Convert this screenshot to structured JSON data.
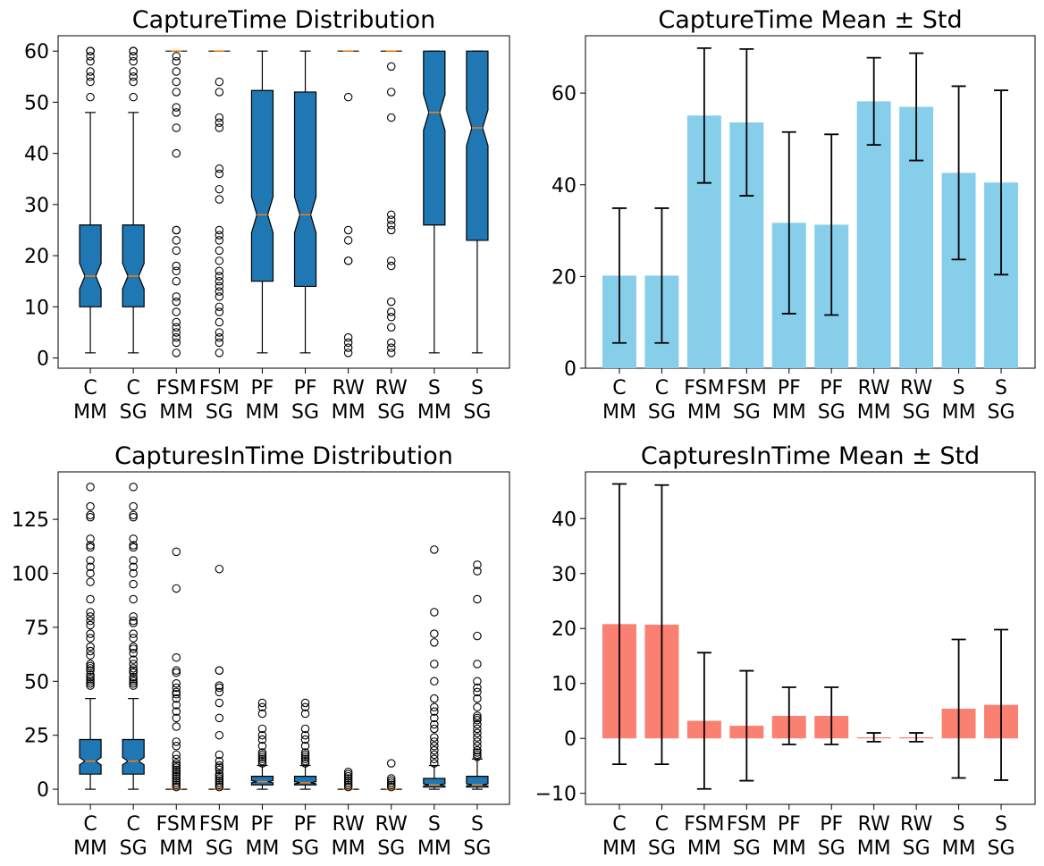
{
  "chart_data": [
    {
      "type": "box",
      "title": "CaptureTime Distribution",
      "categories": [
        "C\nMM",
        "C\nSG",
        "FSM\nMM",
        "FSM\nSG",
        "PF\nMM",
        "PF\nSG",
        "RW\nMM",
        "RW\nSG",
        "S\nMM",
        "S\nSG"
      ],
      "ylim": [
        -2,
        63
      ],
      "yticks": [
        0,
        10,
        20,
        30,
        40,
        50,
        60
      ],
      "box_color": "#1f77b4",
      "median_color": "#ff7f0e",
      "notched": true,
      "boxes": [
        {
          "q1": 10,
          "median": 16,
          "q3": 26,
          "whislo": 1,
          "whishi": 48,
          "notch": [
            13.5,
            18.5
          ],
          "fliers": [
            51,
            54,
            55,
            56,
            58,
            59,
            60,
            60,
            60
          ]
        },
        {
          "q1": 10,
          "median": 16,
          "q3": 26,
          "whislo": 1,
          "whishi": 48,
          "notch": [
            13.5,
            18.5
          ],
          "fliers": [
            51,
            54,
            55,
            56,
            58,
            59,
            60,
            60,
            60
          ]
        },
        {
          "q1": 60,
          "median": 60,
          "q3": 60,
          "whislo": 60,
          "whishi": 60,
          "notch": [
            60,
            60
          ],
          "fliers": [
            1,
            3,
            4,
            5,
            6,
            7,
            9,
            11,
            12,
            15,
            17,
            18,
            21,
            23,
            25,
            25,
            40,
            45,
            48,
            49,
            52,
            54,
            56,
            58,
            59
          ]
        },
        {
          "q1": 60,
          "median": 60,
          "q3": 60,
          "whislo": 60,
          "whishi": 60,
          "notch": [
            60,
            60
          ],
          "fliers": [
            1,
            3,
            4,
            5,
            7,
            9,
            10,
            12,
            13,
            14,
            15,
            16,
            17,
            19,
            21,
            23,
            24,
            25,
            31,
            33,
            36,
            37,
            45,
            46,
            47,
            52,
            54
          ]
        },
        {
          "q1": 15,
          "median": 28,
          "q3": 52.3,
          "whislo": 1,
          "whishi": 60,
          "notch": [
            24.5,
            31.5
          ],
          "fliers": []
        },
        {
          "q1": 14,
          "median": 28,
          "q3": 52,
          "whislo": 1,
          "whishi": 60,
          "notch": [
            24.5,
            31.5
          ],
          "fliers": []
        },
        {
          "q1": 60,
          "median": 60,
          "q3": 60,
          "whislo": 60,
          "whishi": 60,
          "notch": [
            60,
            60
          ],
          "fliers": [
            1,
            2,
            3,
            4,
            19,
            19,
            23,
            25,
            51
          ]
        },
        {
          "q1": 60,
          "median": 60,
          "q3": 60,
          "whislo": 60,
          "whishi": 60,
          "notch": [
            60,
            60
          ],
          "fliers": [
            1,
            2,
            3,
            6,
            8,
            9,
            11,
            18,
            19,
            25,
            26,
            27,
            28,
            47,
            52,
            57
          ]
        },
        {
          "q1": 26,
          "median": 48,
          "q3": 60,
          "whislo": 1,
          "whishi": 60,
          "notch": [
            44.5,
            51.5
          ],
          "fliers": []
        },
        {
          "q1": 23,
          "median": 45,
          "q3": 60,
          "whislo": 1,
          "whishi": 60,
          "notch": [
            41.5,
            48.5
          ],
          "fliers": []
        }
      ]
    },
    {
      "type": "bar",
      "title": "CaptureTime Mean ± Std",
      "categories": [
        "C\nMM",
        "C\nSG",
        "FSM\nMM",
        "FSM\nSG",
        "PF\nMM",
        "PF\nSG",
        "RW\nMM",
        "RW\nSG",
        "S\nMM",
        "S\nSG"
      ],
      "values": [
        20.2,
        20.2,
        55.1,
        53.6,
        31.7,
        31.3,
        58.2,
        57.0,
        42.6,
        40.5
      ],
      "errors": [
        14.7,
        14.7,
        14.7,
        16.0,
        19.8,
        19.7,
        9.5,
        11.7,
        18.9,
        20.1
      ],
      "ylim": [
        0,
        72.5
      ],
      "yticks": [
        0,
        20,
        40,
        60
      ],
      "bar_color": "#87ceeb"
    },
    {
      "type": "box",
      "title": "CapturesInTime Distribution",
      "categories": [
        "C\nMM",
        "C\nSG",
        "FSM\nMM",
        "FSM\nSG",
        "PF\nMM",
        "PF\nSG",
        "RW\nMM",
        "RW\nSG",
        "S\nMM",
        "S\nSG"
      ],
      "ylim": [
        -7,
        147
      ],
      "yticks": [
        0,
        25,
        50,
        75,
        100,
        125
      ],
      "box_color": "#1f77b4",
      "median_color": "#ff7f0e",
      "notched": true,
      "boxes": [
        {
          "q1": 7,
          "median": 13,
          "q3": 23,
          "whislo": 0,
          "whishi": 42,
          "notch": [
            11.3,
            14.7
          ],
          "fliers": [
            48,
            49,
            50,
            51,
            52,
            53,
            55,
            56,
            57,
            58,
            62,
            64,
            66,
            70,
            72,
            76,
            78,
            80,
            82,
            88,
            96,
            100,
            103,
            106,
            112,
            113,
            116,
            126,
            127,
            131,
            140
          ]
        },
        {
          "q1": 7,
          "median": 13,
          "q3": 23,
          "whislo": 0,
          "whishi": 42,
          "notch": [
            11.3,
            14.7
          ],
          "fliers": [
            48,
            49,
            50,
            51,
            52,
            54,
            55,
            56,
            58,
            60,
            63,
            65,
            66,
            70,
            72,
            77,
            78,
            80,
            88,
            95,
            100,
            103,
            106,
            112,
            113,
            116,
            126,
            127,
            131,
            140
          ]
        },
        {
          "q1": 0,
          "median": 0,
          "q3": 0,
          "whislo": 0,
          "whishi": 0,
          "notch": [
            0,
            0
          ],
          "fliers": [
            1,
            2,
            3,
            4,
            5,
            6,
            7,
            8,
            9,
            10,
            11,
            12,
            14,
            16,
            20,
            22,
            29,
            33,
            36,
            39,
            42,
            44,
            45,
            47,
            49,
            54,
            55,
            61,
            93,
            110
          ]
        },
        {
          "q1": 0,
          "median": 0,
          "q3": 0,
          "whislo": 0,
          "whishi": 0,
          "notch": [
            0,
            0
          ],
          "fliers": [
            1,
            2,
            3,
            4,
            5,
            6,
            7,
            9,
            10,
            11,
            13,
            16,
            25,
            33,
            40,
            45,
            47,
            48,
            55,
            55,
            102
          ]
        },
        {
          "q1": 2,
          "median": 3.5,
          "q3": 6,
          "whislo": 0,
          "whishi": 11,
          "notch": [
            3,
            4
          ],
          "fliers": [
            12,
            13,
            14,
            15,
            16,
            17,
            20,
            23,
            25,
            28,
            35,
            38,
            40
          ]
        },
        {
          "q1": 2,
          "median": 3,
          "q3": 6,
          "whislo": 0,
          "whishi": 11,
          "notch": [
            2.5,
            3.5
          ],
          "fliers": [
            12,
            13,
            14,
            15,
            16,
            17,
            20,
            23,
            25,
            28,
            35,
            38,
            40
          ]
        },
        {
          "q1": 0,
          "median": 0,
          "q3": 0,
          "whislo": 0,
          "whishi": 0,
          "notch": [
            0,
            0
          ],
          "fliers": [
            1,
            2,
            3,
            4,
            5,
            6,
            7,
            8
          ]
        },
        {
          "q1": 0,
          "median": 0,
          "q3": 0,
          "whislo": 0,
          "whishi": 0,
          "notch": [
            0,
            0
          ],
          "fliers": [
            1,
            2,
            3,
            4,
            5,
            12
          ]
        },
        {
          "q1": 1,
          "median": 2,
          "q3": 5,
          "whislo": 0,
          "whishi": 11,
          "notch": [
            1.5,
            2.5
          ],
          "fliers": [
            12,
            14,
            16,
            18,
            20,
            22,
            24,
            28,
            30,
            33,
            36,
            38,
            42,
            50,
            58,
            68,
            72,
            82,
            111
          ]
        },
        {
          "q1": 1,
          "median": 2,
          "q3": 6,
          "whislo": 0,
          "whishi": 14,
          "notch": [
            1.5,
            2.5
          ],
          "fliers": [
            15,
            16,
            17,
            18,
            20,
            22,
            24,
            26,
            28,
            30,
            32,
            33,
            34,
            38,
            42,
            45,
            47,
            50,
            58,
            71,
            88,
            101,
            104
          ]
        }
      ]
    },
    {
      "type": "bar",
      "title": "CapturesInTime Mean ± Std",
      "categories": [
        "C\nMM",
        "C\nSG",
        "FSM\nMM",
        "FSM\nSG",
        "PF\nMM",
        "PF\nSG",
        "RW\nMM",
        "RW\nSG",
        "S\nMM",
        "S\nSG"
      ],
      "values": [
        20.8,
        20.7,
        3.2,
        2.3,
        4.1,
        4.1,
        0.2,
        0.2,
        5.4,
        6.1
      ],
      "errors": [
        25.5,
        25.4,
        12.4,
        10.0,
        5.2,
        5.2,
        0.8,
        0.8,
        12.6,
        13.7
      ],
      "ylim": [
        -12,
        48.5
      ],
      "yticks": [
        -10,
        0,
        10,
        20,
        30,
        40
      ],
      "bar_color": "#fa8072"
    }
  ]
}
